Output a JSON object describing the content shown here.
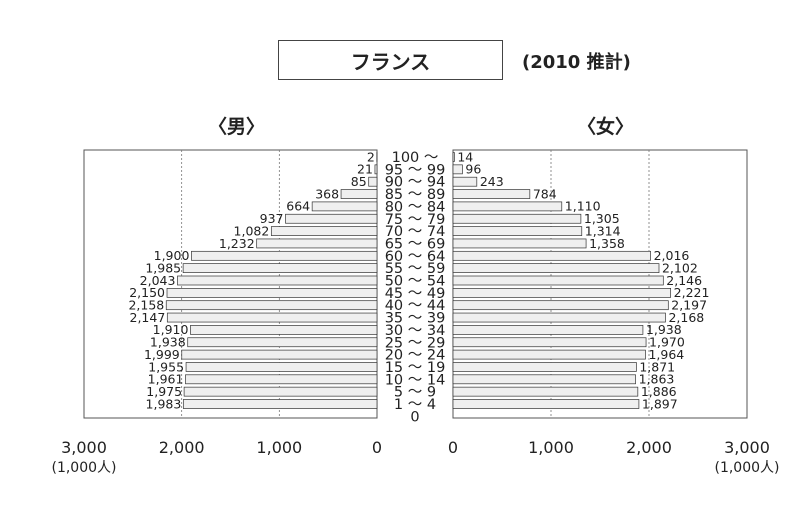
{
  "header": {
    "title": "フランス",
    "estimate_note": "(2010 推計)",
    "male_label": "〈男〉",
    "female_label": "〈女〉"
  },
  "chart_data": {
    "type": "bar",
    "orientation": "horizontal",
    "subtype": "population-pyramid",
    "unit": "(1,000人)",
    "xlim": [
      0,
      3000
    ],
    "xticks": [
      "3,000",
      "2,000",
      "1,000",
      "0"
    ],
    "xticks_right": [
      "0",
      "1,000",
      "2,000",
      "3,000"
    ],
    "grid": true,
    "categories": [
      "100 〜",
      "95 〜 99",
      "90 〜 94",
      "85 〜 89",
      "80 〜 84",
      "75 〜 79",
      "70 〜 74",
      "65 〜 69",
      "60 〜 64",
      "55 〜 59",
      "50 〜 54",
      "45 〜 49",
      "40 〜 44",
      "35 〜 39",
      "30 〜 34",
      "25 〜 29",
      "20 〜 24",
      "15 〜 19",
      "10 〜 14",
      "5 〜 9",
      "1 〜 4",
      "0"
    ],
    "series": [
      {
        "name": "〈男〉",
        "values": [
          2,
          21,
          85,
          368,
          664,
          937,
          1082,
          1232,
          1900,
          1985,
          2043,
          2150,
          2158,
          2147,
          1910,
          1938,
          1999,
          1955,
          1961,
          1975,
          1983,
          null
        ],
        "labels": [
          "2",
          "21",
          "85",
          "368",
          "664",
          "937",
          "1,082",
          "1,232",
          "1,900",
          "1,985",
          "2,043",
          "2,150",
          "2,158",
          "2,147",
          "1,910",
          "1,938",
          "1,999",
          "1,955",
          "1,961",
          "1,975",
          "1,983",
          ""
        ]
      },
      {
        "name": "〈女〉",
        "values": [
          14,
          96,
          243,
          784,
          1110,
          1305,
          1314,
          1358,
          2016,
          2102,
          2146,
          2221,
          2197,
          2168,
          1938,
          1970,
          1964,
          1871,
          1863,
          1886,
          1897,
          null
        ],
        "labels": [
          "14",
          "96",
          "243",
          "784",
          "1,110",
          "1,305",
          "1,314",
          "1,358",
          "2,016",
          "2,102",
          "2,146",
          "2,221",
          "2,197",
          "2,168",
          "1,938",
          "1,970",
          "1,964",
          "1,871",
          "1,863",
          "1,886",
          "1,897",
          ""
        ]
      }
    ]
  }
}
